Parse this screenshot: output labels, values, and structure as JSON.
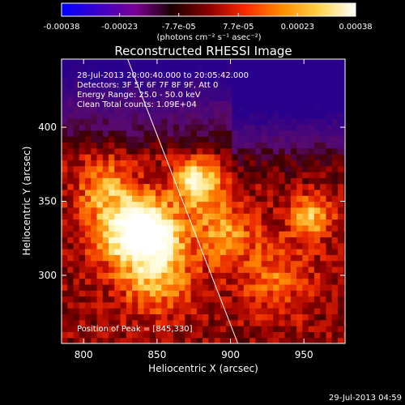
{
  "colorbar": {
    "tick_labels": [
      "-0.00038",
      "-0.00023",
      "-7.7e-05",
      "7.7e-05",
      "0.00023",
      "0.00038"
    ],
    "tick_values": [
      -0.00038,
      -0.00023,
      -7.7e-05,
      7.7e-05,
      0.00023,
      0.00038
    ],
    "range": [
      -0.00038,
      0.00038
    ],
    "units_label": "(photons cm⁻² s⁻¹ asec⁻²)",
    "colors": [
      "#0000ff",
      "#3c00c8",
      "#7a0096",
      "#1a0000",
      "#8a0000",
      "#ff2a00",
      "#ff8c00",
      "#ffd24a",
      "#ffffff"
    ]
  },
  "chart_data": {
    "type": "heatmap",
    "title": "Reconstructed RHESSI Image",
    "xlabel": "Heliocentric X (arcsec)",
    "ylabel": "Heliocentric Y (arcsec)",
    "xlim": [
      785,
      978
    ],
    "ylim": [
      254,
      446
    ],
    "x_ticks": [
      800,
      850,
      900,
      950
    ],
    "y_ticks": [
      300,
      350,
      400
    ],
    "peak": {
      "x": 845,
      "y": 330
    },
    "annotations": [
      "28-Jul-2013 20:00:40.000 to 20:05:42.000",
      "Detectors: 3F 5F 6F 7F 8F 9F, Att 0",
      "Energy Range: 25.0 - 50.0 keV",
      "Clean     Total counts: 1.09E+04"
    ],
    "peak_label": "Position of Peak = [845,330]",
    "limb_line": {
      "x_top": 830,
      "x_bottom": 905
    }
  },
  "footer": {
    "timestamp": "29-Jul-2013 04:59"
  }
}
